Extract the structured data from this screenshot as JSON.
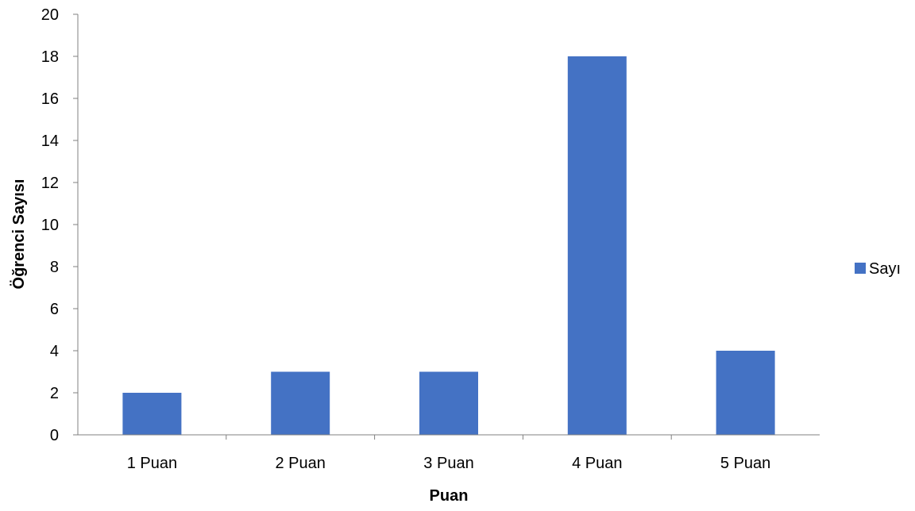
{
  "chart_data": {
    "type": "bar",
    "categories": [
      "1 Puan",
      "2 Puan",
      "3 Puan",
      "4 Puan",
      "5 Puan"
    ],
    "series": [
      {
        "name": "Sayı",
        "values": [
          2,
          3,
          3,
          18,
          4
        ]
      }
    ],
    "xlabel": "Puan",
    "ylabel": "Öğrenci Sayısı",
    "ylim": [
      0,
      20
    ],
    "yticks": [
      "0",
      "2",
      "4",
      "6",
      "8",
      "10",
      "12",
      "14",
      "16",
      "18",
      "20"
    ],
    "grid": false,
    "legend_position": "right",
    "colors": {
      "bar": "#4472C4",
      "axis": "#808080"
    }
  }
}
